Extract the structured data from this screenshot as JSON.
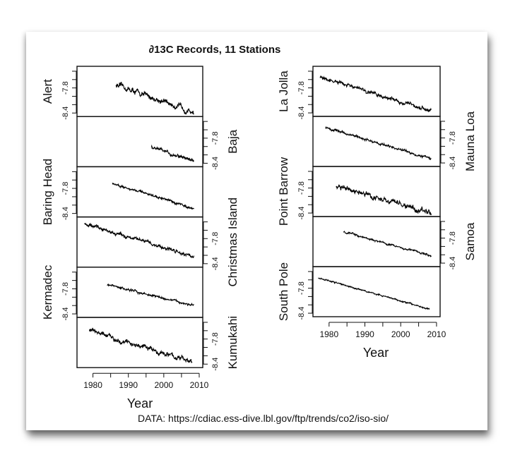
{
  "chart_data": {
    "type": "line",
    "title": "∂13C Records, 11 Stations",
    "xlabel": "Year",
    "ylabel": "",
    "caption": "DATA: https://cdiac.ess-dive.lbl.gov/ftp/trends/co2/iso-sio/",
    "xlim": [
      1975.5,
      2011
    ],
    "ylim": [
      -8.45,
      -7.35
    ],
    "x_ticks": [
      1980,
      1985,
      1990,
      1995,
      2000,
      2005,
      2010
    ],
    "x_tick_labels": [
      "1980",
      "1990",
      "2000",
      "2010"
    ],
    "y_tick_values": [
      -7.4,
      -7.6,
      -7.8,
      -8.0,
      -8.2,
      -8.4
    ],
    "y_tick_labels": [
      "-7.8",
      "-8.4"
    ],
    "grid": false,
    "legend": "none",
    "columns": [
      {
        "panels": [
          {
            "name": "Alert",
            "axis_side": "left",
            "start": 1986.5,
            "end": 2008.5,
            "start_value": -7.73,
            "end_value": -8.38,
            "noise": 0.07
          },
          {
            "name": "Baja",
            "axis_side": "right",
            "start": 1996.5,
            "end": 2008.5,
            "start_value": -8.03,
            "end_value": -8.34,
            "noise": 0.05
          },
          {
            "name": "Baring Head",
            "axis_side": "left",
            "start": 1985.5,
            "end": 2008.5,
            "start_value": -7.68,
            "end_value": -8.28,
            "noise": 0.03
          },
          {
            "name": "Christmas Island",
            "axis_side": "right",
            "start": 1977.5,
            "end": 2008.5,
            "start_value": -7.45,
            "end_value": -8.22,
            "noise": 0.05
          },
          {
            "name": "Kermadec",
            "axis_side": "left",
            "start": 1984.0,
            "end": 2008.5,
            "start_value": -7.7,
            "end_value": -8.2,
            "noise": 0.03
          },
          {
            "name": "Kumukahi",
            "axis_side": "right",
            "start": 1979.0,
            "end": 2008.0,
            "start_value": -7.6,
            "end_value": -8.35,
            "noise": 0.06
          }
        ]
      },
      {
        "panels": [
          {
            "name": "La Jolla",
            "axis_side": "left",
            "start": 1977.5,
            "end": 2008.5,
            "start_value": -7.55,
            "end_value": -8.35,
            "noise": 0.05
          },
          {
            "name": "Mauna Loa",
            "axis_side": "right",
            "start": 1979.0,
            "end": 2008.5,
            "start_value": -7.55,
            "end_value": -8.3,
            "noise": 0.035
          },
          {
            "name": "Point Barrow",
            "axis_side": "left",
            "start": 1982.0,
            "end": 2008.5,
            "start_value": -7.75,
            "end_value": -8.4,
            "noise": 0.07
          },
          {
            "name": "Samoa",
            "axis_side": "right",
            "start": 1984.0,
            "end": 2008.5,
            "start_value": -7.65,
            "end_value": -8.22,
            "noise": 0.025
          },
          {
            "name": "South Pole",
            "axis_side": "left",
            "start": 1977.0,
            "end": 2008.0,
            "start_value": -7.55,
            "end_value": -8.3,
            "noise": 0.02
          }
        ]
      }
    ]
  }
}
